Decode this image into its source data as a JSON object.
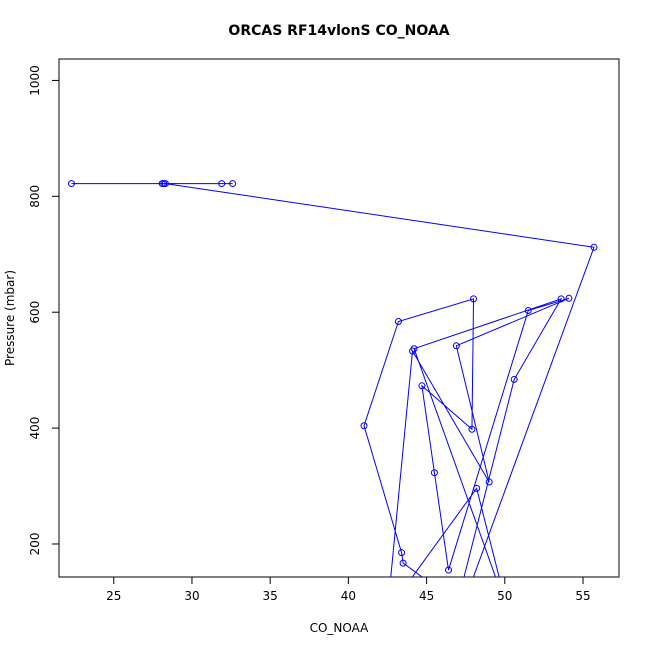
{
  "chart_data": {
    "type": "line",
    "title": "ORCAS RF14vlonS CO_NOAA",
    "xlabel": "CO_NOAA",
    "ylabel": "Pressure (mbar)",
    "xlim": [
      21.5,
      57.3
    ],
    "ylim": [
      1037,
      143
    ],
    "y_reversed": true,
    "x_ticks": [
      25,
      30,
      35,
      40,
      45,
      50,
      55
    ],
    "y_ticks": [
      200,
      400,
      600,
      800,
      1000
    ],
    "grid": false,
    "legend": "none",
    "color": "#0000ff",
    "series": [
      {
        "x": [
          22.3,
          28.1,
          28.2,
          31.9,
          32.6,
          28.3,
          55.7,
          47.3,
          43.5,
          43.4,
          41.0,
          43.2,
          48.0,
          47.9,
          44.7,
          45.5,
          46.4,
          51.5,
          54.1,
          46.9,
          49.0,
          44.1,
          42.5,
          48.2,
          50.2,
          44.2,
          53.6,
          50.6,
          46.8
        ],
        "y": [
          822,
          822,
          822,
          822,
          822,
          822,
          712,
          92,
          167,
          185,
          404,
          584,
          623,
          398,
          473,
          323,
          155,
          603,
          624,
          542,
          307,
          533,
          84,
          296,
          83,
          537,
          623,
          484,
          80
        ]
      }
    ]
  }
}
